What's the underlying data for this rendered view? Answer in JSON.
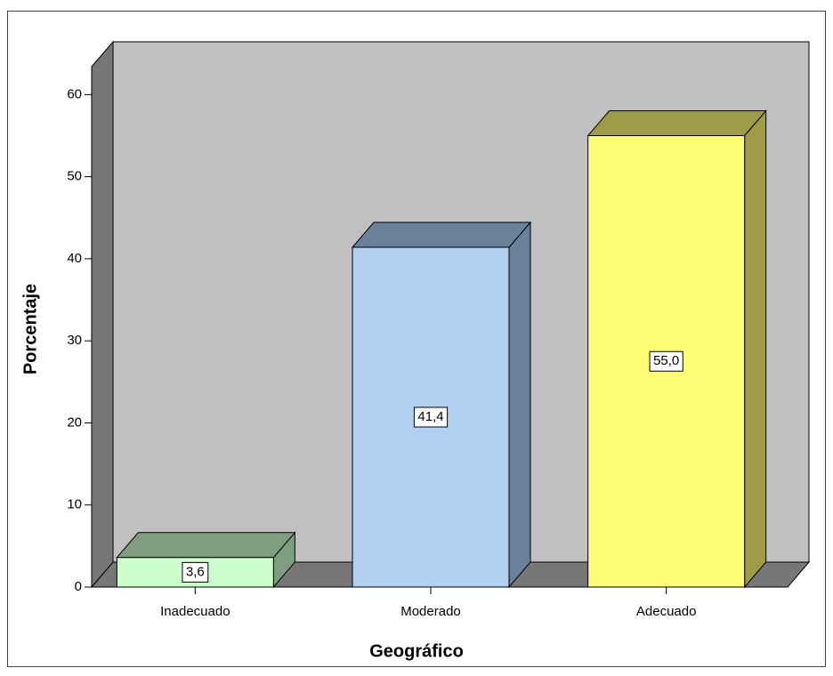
{
  "chart_data": {
    "type": "bar3d",
    "x_label": "Geográfico",
    "y_label": "Porcentaje",
    "categories": [
      "Inadecuado",
      "Moderado",
      "Adecuado"
    ],
    "values": [
      3.6,
      41.4,
      55.0
    ],
    "value_labels": [
      "3,6",
      "41,4",
      "55,0"
    ],
    "colors": [
      "#ccffcc",
      "#b0d0ef",
      "#ffff77"
    ],
    "side_colors": [
      "#7f9e7f",
      "#6a8299",
      "#a09b46"
    ],
    "ylim": [
      0,
      63.4
    ],
    "yticks": [
      0,
      10,
      20,
      30,
      40,
      50,
      60
    ]
  }
}
